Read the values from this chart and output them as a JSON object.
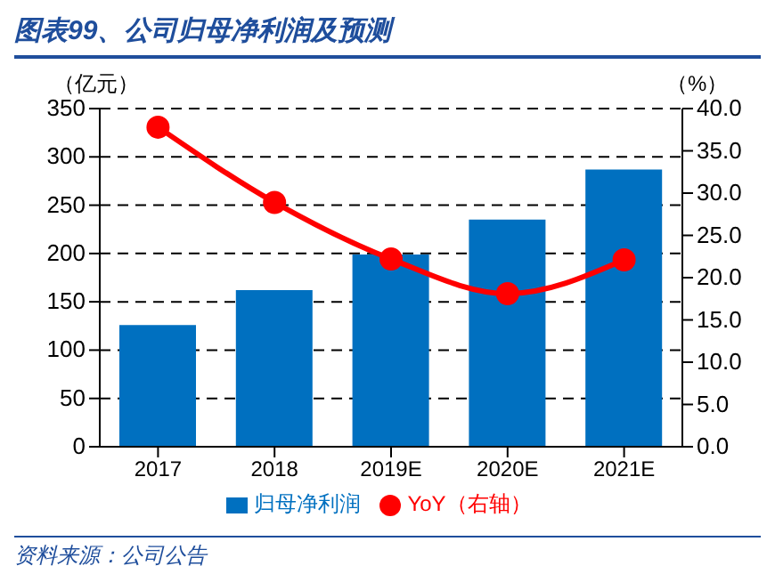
{
  "chart_data": {
    "type": "bar",
    "title": "图表99、公司归母净利润及预测",
    "ylabel": "（亿元）",
    "y2label": "（%）",
    "categories": [
      "2017",
      "2018",
      "2019E",
      "2020E",
      "2021E"
    ],
    "series": [
      {
        "name": "归母净利润",
        "color": "#0070c0",
        "values": [
          126,
          162,
          199,
          235,
          287
        ]
      },
      {
        "name": "YoY（右轴）",
        "type": "line",
        "axis": "y2",
        "color": "#ff0000",
        "marker": "circle",
        "values": [
          37.8,
          28.9,
          22.2,
          18.1,
          22.1
        ]
      }
    ],
    "ylim": [
      0,
      350
    ],
    "yticks": [
      0,
      50,
      100,
      150,
      200,
      250,
      300,
      350
    ],
    "y2lim": [
      0,
      40
    ],
    "y2ticks": [
      {
        "value": 0,
        "label": "0.0"
      },
      {
        "value": 5,
        "label": "5.0"
      },
      {
        "value": 10,
        "label": "10.0"
      },
      {
        "value": 15,
        "label": "15.0"
      },
      {
        "value": 20,
        "label": "20.0"
      },
      {
        "value": 25,
        "label": "25.0"
      },
      {
        "value": 30,
        "label": "30.0"
      },
      {
        "value": 35,
        "label": "35.0"
      },
      {
        "value": 40,
        "label": "40.0"
      }
    ],
    "grid": "y",
    "legend": "bottom",
    "annotations": [
      "资料来源：公司公告"
    ]
  }
}
